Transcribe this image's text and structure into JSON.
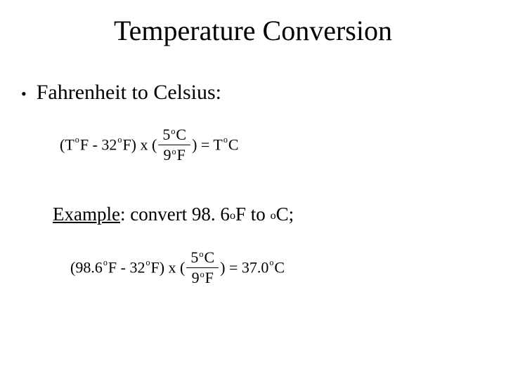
{
  "colors": {
    "background": "#ffffff",
    "text": "#000000",
    "rule": "#000000"
  },
  "title": {
    "text": "Temperature Conversion",
    "fontsize": 40,
    "font_family": "Times New Roman"
  },
  "bullet": {
    "glyph": "•",
    "text": "Fahrenheit to Celsius:",
    "fontsize": 30
  },
  "formula_general": {
    "left_open": "(T",
    "degF1": "F",
    "minus": " - 32",
    "degF2": "F) x (",
    "frac_num_val": "5",
    "frac_num_unit": "C",
    "frac_den_val": "9",
    "frac_den_unit": "F",
    "close_eq": ") =  T",
    "result_unit": "C",
    "fontsize": 22
  },
  "example_line": {
    "label": "Example",
    "rest": ": convert 98. 6",
    "unit1": "F to ",
    "unit2": "C;",
    "fontsize": 27
  },
  "formula_example": {
    "left_open": "(98.6",
    "degF1": "F",
    "minus": " - 32",
    "degF2": "F) x (",
    "frac_num_val": "5",
    "frac_num_unit": "C",
    "frac_den_val": "9",
    "frac_den_unit": "F",
    "close_eq": ") =  37.0",
    "result_unit": "C",
    "fontsize": 22
  }
}
